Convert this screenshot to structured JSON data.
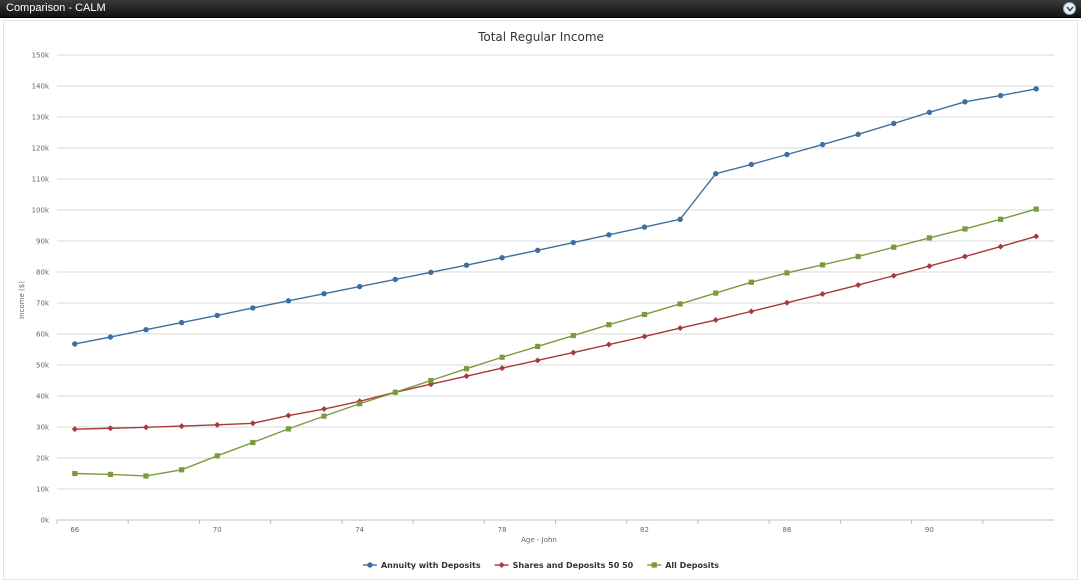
{
  "window": {
    "title": "Comparison - CALM",
    "collapse_icon": "chevron-down-icon"
  },
  "chart_data": {
    "type": "line",
    "title": "Total Regular Income",
    "xlabel": "Age - John",
    "ylabel": "Income ($)",
    "x": [
      66,
      67,
      68,
      69,
      70,
      71,
      72,
      73,
      74,
      75,
      76,
      77,
      78,
      79,
      80,
      81,
      82,
      83,
      84,
      85,
      86,
      87,
      88,
      89,
      90,
      91,
      92,
      93
    ],
    "x_ticks": [
      "66",
      "70",
      "74",
      "78",
      "82",
      "86",
      "90"
    ],
    "y_ticks": [
      "0k",
      "10k",
      "20k",
      "30k",
      "40k",
      "50k",
      "60k",
      "70k",
      "80k",
      "90k",
      "100k",
      "110k",
      "120k",
      "130k",
      "140k",
      "150k"
    ],
    "ylim": [
      0,
      150000
    ],
    "grid": true,
    "legend_position": "bottom-center",
    "series": [
      {
        "name": "Annuity with Deposits",
        "color": "#3f6f9f",
        "marker": "circle",
        "values": [
          56800,
          59000,
          61400,
          63700,
          66000,
          68400,
          70700,
          73000,
          75300,
          77600,
          79900,
          82200,
          84600,
          87000,
          89500,
          92000,
          94500,
          97000,
          111700,
          114700,
          117900,
          121100,
          124400,
          127900,
          131500,
          134900,
          136900,
          139100
        ]
      },
      {
        "name": "Shares and Deposits 50 50",
        "color": "#a8393d",
        "marker": "diamond",
        "values": [
          29300,
          29600,
          29900,
          30300,
          30700,
          31200,
          33700,
          35800,
          38300,
          41200,
          43800,
          46400,
          49000,
          51500,
          54000,
          56600,
          59200,
          61900,
          64500,
          67300,
          70100,
          72900,
          75800,
          78800,
          81900,
          85000,
          88200,
          91500
        ]
      },
      {
        "name": "All Deposits",
        "color": "#7a9a3e",
        "marker": "square",
        "values": [
          15000,
          14700,
          14200,
          16200,
          20700,
          25000,
          29400,
          33500,
          37500,
          41200,
          45000,
          48800,
          52500,
          56000,
          59500,
          63000,
          66300,
          69700,
          73200,
          76700,
          79700,
          82300,
          85000,
          88000,
          91000,
          93900,
          97000,
          100300
        ]
      }
    ]
  }
}
